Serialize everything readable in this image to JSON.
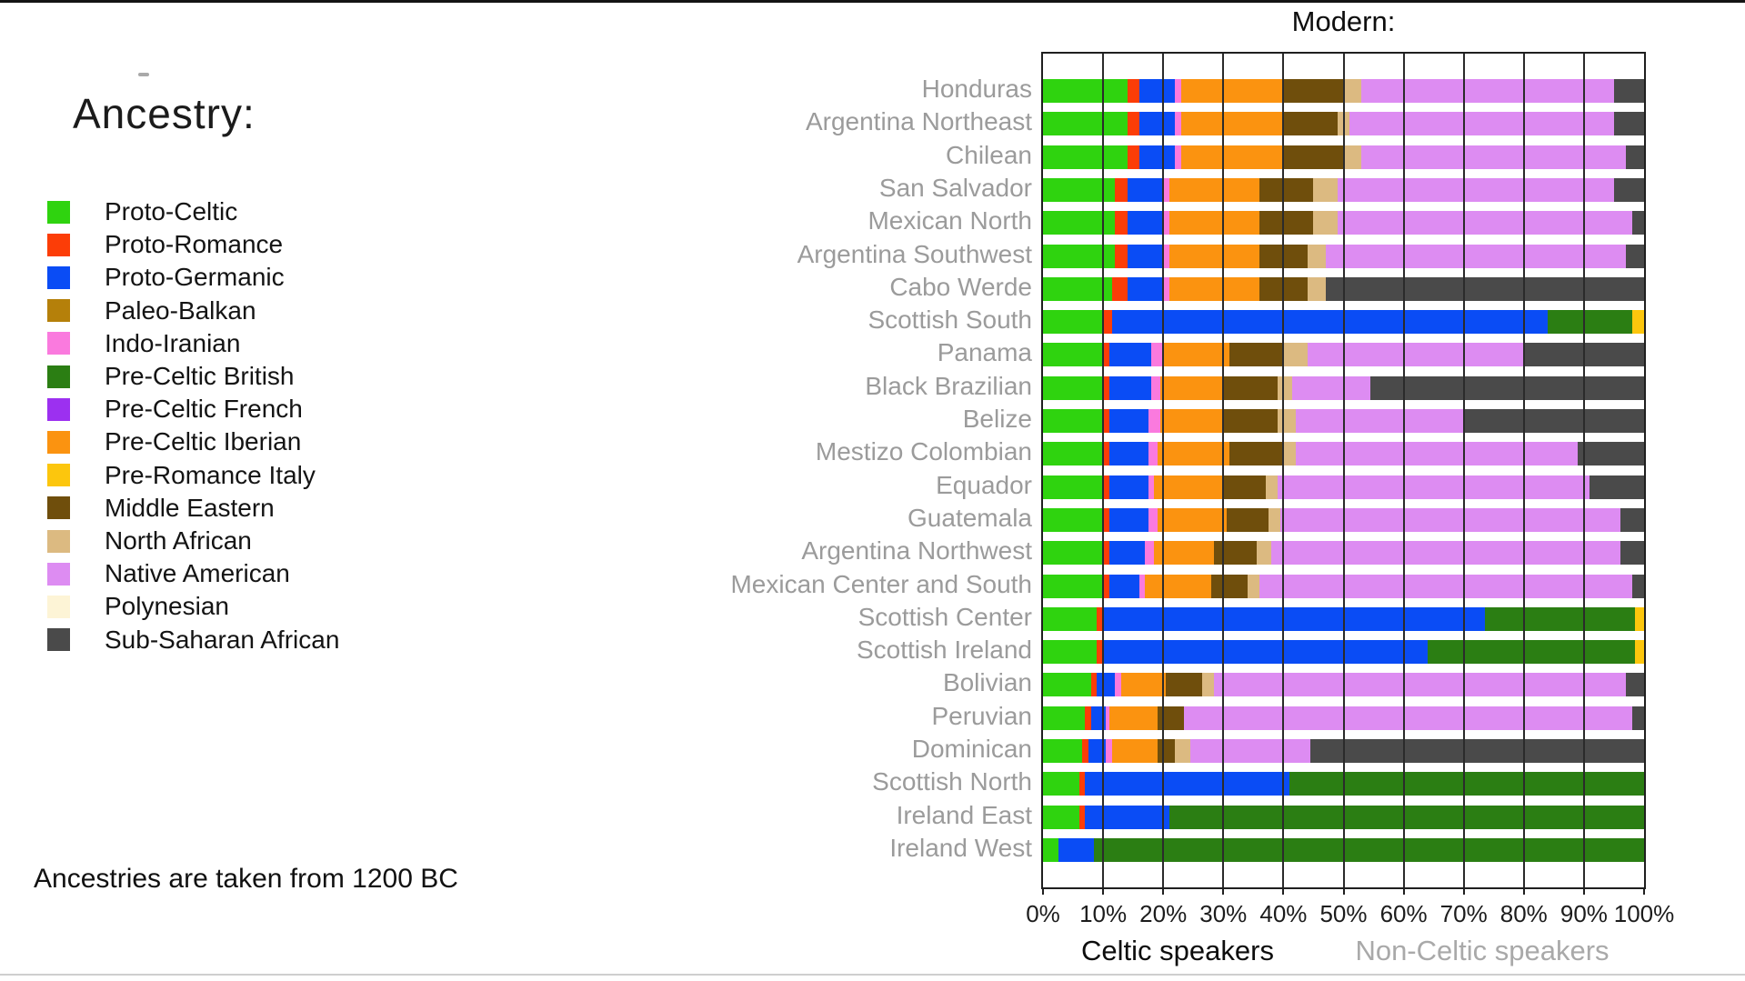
{
  "left_panel": {
    "heading": "Ancestry:",
    "footnote": "Ancestries are taken from 1200 BC"
  },
  "chart_data": {
    "type": "bar",
    "stacked": true,
    "orientation": "horizontal",
    "title": "Modern:",
    "xlabel_left": "Celtic speakers",
    "xlabel_right": "Non-Celtic speakers",
    "xlim": [
      0,
      100
    ],
    "x_ticks": [
      "0%",
      "10%",
      "20%",
      "30%",
      "40%",
      "50%",
      "60%",
      "70%",
      "80%",
      "90%",
      "100%"
    ],
    "grid": "vertical-10pct",
    "legend_position": "left",
    "legend": [
      {
        "label": "Proto-Celtic",
        "color": "#2fd30f"
      },
      {
        "label": "Proto-Romance",
        "color": "#fc3d07"
      },
      {
        "label": "Proto-Germanic",
        "color": "#0a4cf5"
      },
      {
        "label": "Paleo-Balkan",
        "color": "#b5800a"
      },
      {
        "label": "Indo-Iranian",
        "color": "#fa7ade"
      },
      {
        "label": "Pre-Celtic British",
        "color": "#2b7e13"
      },
      {
        "label": "Pre-Celtic French",
        "color": "#9c30f0"
      },
      {
        "label": "Pre-Celtic Iberian",
        "color": "#fb9310"
      },
      {
        "label": "Pre-Romance Italy",
        "color": "#fcc60d"
      },
      {
        "label": "Middle Eastern",
        "color": "#6f4e0c"
      },
      {
        "label": "North African",
        "color": "#dcba81"
      },
      {
        "label": "Native American",
        "color": "#dd8cf2"
      },
      {
        "label": "Polynesian",
        "color": "#fdf4d6"
      },
      {
        "label": "Sub-Saharan African",
        "color": "#4a4a4a"
      }
    ],
    "rows": [
      {
        "label": "Honduras",
        "segments": [
          [
            "Proto-Celtic",
            14
          ],
          [
            "Proto-Romance",
            2
          ],
          [
            "Proto-Germanic",
            6
          ],
          [
            "Indo-Iranian",
            1
          ],
          [
            "Pre-Celtic Iberian",
            17
          ],
          [
            "Middle Eastern",
            10
          ],
          [
            "North African",
            3
          ],
          [
            "Native American",
            42
          ],
          [
            "Sub-Saharan African",
            5
          ]
        ]
      },
      {
        "label": "Argentina Northeast",
        "segments": [
          [
            "Proto-Celtic",
            14
          ],
          [
            "Proto-Romance",
            2
          ],
          [
            "Proto-Germanic",
            6
          ],
          [
            "Indo-Iranian",
            1
          ],
          [
            "Pre-Celtic Iberian",
            17
          ],
          [
            "Middle Eastern",
            9
          ],
          [
            "North African",
            2
          ],
          [
            "Native American",
            44
          ],
          [
            "Sub-Saharan African",
            5
          ]
        ]
      },
      {
        "label": "Chilean",
        "segments": [
          [
            "Proto-Celtic",
            14
          ],
          [
            "Proto-Romance",
            2
          ],
          [
            "Proto-Germanic",
            6
          ],
          [
            "Indo-Iranian",
            1
          ],
          [
            "Pre-Celtic Iberian",
            17
          ],
          [
            "Middle Eastern",
            10
          ],
          [
            "North African",
            3
          ],
          [
            "Native American",
            44
          ],
          [
            "Sub-Saharan African",
            3
          ]
        ]
      },
      {
        "label": "San Salvador",
        "segments": [
          [
            "Proto-Celtic",
            12
          ],
          [
            "Proto-Romance",
            2
          ],
          [
            "Proto-Germanic",
            6
          ],
          [
            "Indo-Iranian",
            1
          ],
          [
            "Pre-Celtic Iberian",
            15
          ],
          [
            "Middle Eastern",
            9
          ],
          [
            "North African",
            4
          ],
          [
            "Native American",
            46
          ],
          [
            "Sub-Saharan African",
            5
          ]
        ]
      },
      {
        "label": "Mexican North",
        "segments": [
          [
            "Proto-Celtic",
            12
          ],
          [
            "Proto-Romance",
            2
          ],
          [
            "Proto-Germanic",
            6
          ],
          [
            "Indo-Iranian",
            1
          ],
          [
            "Pre-Celtic Iberian",
            15
          ],
          [
            "Middle Eastern",
            9
          ],
          [
            "North African",
            4
          ],
          [
            "Native American",
            49
          ],
          [
            "Sub-Saharan African",
            2
          ]
        ]
      },
      {
        "label": "Argentina Southwest",
        "segments": [
          [
            "Proto-Celtic",
            12
          ],
          [
            "Proto-Romance",
            2
          ],
          [
            "Proto-Germanic",
            6
          ],
          [
            "Indo-Iranian",
            1
          ],
          [
            "Pre-Celtic Iberian",
            15
          ],
          [
            "Middle Eastern",
            8
          ],
          [
            "North African",
            3
          ],
          [
            "Native American",
            50
          ],
          [
            "Sub-Saharan African",
            3
          ]
        ]
      },
      {
        "label": "Cabo Werde",
        "segments": [
          [
            "Proto-Celtic",
            11.5
          ],
          [
            "Proto-Romance",
            2.5
          ],
          [
            "Proto-Germanic",
            6
          ],
          [
            "Indo-Iranian",
            1
          ],
          [
            "Pre-Celtic Iberian",
            15
          ],
          [
            "Middle Eastern",
            8
          ],
          [
            "North African",
            3
          ],
          [
            "Sub-Saharan African",
            53
          ]
        ]
      },
      {
        "label": "Scottish South",
        "segments": [
          [
            "Proto-Celtic",
            10
          ],
          [
            "Proto-Romance",
            1.5
          ],
          [
            "Proto-Germanic",
            72.5
          ],
          [
            "Pre-Celtic British",
            14
          ],
          [
            "Pre-Romance Italy",
            2
          ]
        ]
      },
      {
        "label": "Panama",
        "segments": [
          [
            "Proto-Celtic",
            10
          ],
          [
            "Proto-Romance",
            1
          ],
          [
            "Proto-Germanic",
            7
          ],
          [
            "Indo-Iranian",
            2
          ],
          [
            "Pre-Celtic Iberian",
            11
          ],
          [
            "Middle Eastern",
            9
          ],
          [
            "North African",
            4
          ],
          [
            "Native American",
            36
          ],
          [
            "Sub-Saharan African",
            20
          ]
        ]
      },
      {
        "label": "Black Brazilian",
        "segments": [
          [
            "Proto-Celtic",
            10
          ],
          [
            "Proto-Romance",
            1
          ],
          [
            "Proto-Germanic",
            7
          ],
          [
            "Indo-Iranian",
            1.5
          ],
          [
            "Pre-Celtic Iberian",
            10.5
          ],
          [
            "Middle Eastern",
            9
          ],
          [
            "North African",
            2.5
          ],
          [
            "Native American",
            13
          ],
          [
            "Sub-Saharan African",
            45.5
          ]
        ]
      },
      {
        "label": "Belize",
        "segments": [
          [
            "Proto-Celtic",
            10
          ],
          [
            "Proto-Romance",
            1
          ],
          [
            "Proto-Germanic",
            6.5
          ],
          [
            "Indo-Iranian",
            2
          ],
          [
            "Pre-Celtic Iberian",
            10.5
          ],
          [
            "Middle Eastern",
            9
          ],
          [
            "North African",
            3
          ],
          [
            "Native American",
            28
          ],
          [
            "Sub-Saharan African",
            30
          ]
        ]
      },
      {
        "label": "Mestizo Colombian",
        "segments": [
          [
            "Proto-Celtic",
            10
          ],
          [
            "Proto-Romance",
            1
          ],
          [
            "Proto-Germanic",
            6.5
          ],
          [
            "Indo-Iranian",
            1.5
          ],
          [
            "Pre-Celtic Iberian",
            12
          ],
          [
            "Middle Eastern",
            9
          ],
          [
            "North African",
            2
          ],
          [
            "Native American",
            47
          ],
          [
            "Sub-Saharan African",
            11
          ]
        ]
      },
      {
        "label": "Equador",
        "segments": [
          [
            "Proto-Celtic",
            10
          ],
          [
            "Proto-Romance",
            1
          ],
          [
            "Proto-Germanic",
            6.5
          ],
          [
            "Indo-Iranian",
            1
          ],
          [
            "Pre-Celtic Iberian",
            11.5
          ],
          [
            "Middle Eastern",
            7
          ],
          [
            "North African",
            2
          ],
          [
            "Native American",
            52
          ],
          [
            "Sub-Saharan African",
            9
          ]
        ]
      },
      {
        "label": "Guatemala",
        "segments": [
          [
            "Proto-Celtic",
            10
          ],
          [
            "Proto-Romance",
            1
          ],
          [
            "Proto-Germanic",
            6.5
          ],
          [
            "Indo-Iranian",
            1.5
          ],
          [
            "Pre-Celtic Iberian",
            11.5
          ],
          [
            "Middle Eastern",
            7
          ],
          [
            "North African",
            2
          ],
          [
            "Native American",
            56.5
          ],
          [
            "Sub-Saharan African",
            4
          ]
        ]
      },
      {
        "label": "Argentina Northwest",
        "segments": [
          [
            "Proto-Celtic",
            10
          ],
          [
            "Proto-Romance",
            1
          ],
          [
            "Proto-Germanic",
            6
          ],
          [
            "Indo-Iranian",
            1.5
          ],
          [
            "Pre-Celtic Iberian",
            10
          ],
          [
            "Middle Eastern",
            7
          ],
          [
            "North African",
            2.5
          ],
          [
            "Native American",
            58
          ],
          [
            "Sub-Saharan African",
            4
          ]
        ]
      },
      {
        "label": "Mexican Center and South",
        "segments": [
          [
            "Proto-Celtic",
            10
          ],
          [
            "Proto-Romance",
            1
          ],
          [
            "Proto-Germanic",
            5
          ],
          [
            "Indo-Iranian",
            1
          ],
          [
            "Pre-Celtic Iberian",
            11
          ],
          [
            "Middle Eastern",
            6
          ],
          [
            "North African",
            2
          ],
          [
            "Native American",
            62
          ],
          [
            "Sub-Saharan African",
            2
          ]
        ]
      },
      {
        "label": "Scottish Center",
        "segments": [
          [
            "Proto-Celtic",
            9
          ],
          [
            "Proto-Romance",
            1
          ],
          [
            "Proto-Germanic",
            63.5
          ],
          [
            "Pre-Celtic British",
            25
          ],
          [
            "Pre-Romance Italy",
            1.5
          ]
        ]
      },
      {
        "label": "Scottish Ireland",
        "segments": [
          [
            "Proto-Celtic",
            9
          ],
          [
            "Proto-Romance",
            1
          ],
          [
            "Proto-Germanic",
            54
          ],
          [
            "Pre-Celtic British",
            34.5
          ],
          [
            "Pre-Romance Italy",
            1.5
          ]
        ]
      },
      {
        "label": "Bolivian",
        "segments": [
          [
            "Proto-Celtic",
            8
          ],
          [
            "Proto-Romance",
            1
          ],
          [
            "Proto-Germanic",
            3
          ],
          [
            "Indo-Iranian",
            1
          ],
          [
            "Pre-Celtic Iberian",
            7.5
          ],
          [
            "Middle Eastern",
            6
          ],
          [
            "North African",
            2
          ],
          [
            "Native American",
            68.5
          ],
          [
            "Sub-Saharan African",
            3
          ]
        ]
      },
      {
        "label": "Peruvian",
        "segments": [
          [
            "Proto-Celtic",
            7
          ],
          [
            "Proto-Romance",
            1
          ],
          [
            "Proto-Germanic",
            2.5
          ],
          [
            "Indo-Iranian",
            0.5
          ],
          [
            "Pre-Celtic Iberian",
            8
          ],
          [
            "Middle Eastern",
            4.5
          ],
          [
            "Native American",
            74.5
          ],
          [
            "Sub-Saharan African",
            2
          ]
        ]
      },
      {
        "label": "Dominican",
        "segments": [
          [
            "Proto-Celtic",
            6.5
          ],
          [
            "Proto-Romance",
            1
          ],
          [
            "Proto-Germanic",
            3
          ],
          [
            "Indo-Iranian",
            1
          ],
          [
            "Pre-Celtic Iberian",
            7.5
          ],
          [
            "Middle Eastern",
            3
          ],
          [
            "North African",
            2.5
          ],
          [
            "Native American",
            20
          ],
          [
            "Sub-Saharan African",
            55.5
          ]
        ]
      },
      {
        "label": "Scottish North",
        "segments": [
          [
            "Proto-Celtic",
            6
          ],
          [
            "Proto-Romance",
            1
          ],
          [
            "Proto-Germanic",
            34
          ],
          [
            "Pre-Celtic British",
            59
          ]
        ]
      },
      {
        "label": "Ireland East",
        "segments": [
          [
            "Proto-Celtic",
            6
          ],
          [
            "Proto-Romance",
            1
          ],
          [
            "Proto-Germanic",
            14
          ],
          [
            "Pre-Celtic British",
            79
          ]
        ]
      },
      {
        "label": "Ireland West",
        "segments": [
          [
            "Proto-Celtic",
            2.5
          ],
          [
            "Proto-Germanic",
            6
          ],
          [
            "Pre-Celtic British",
            91.5
          ]
        ]
      }
    ]
  }
}
